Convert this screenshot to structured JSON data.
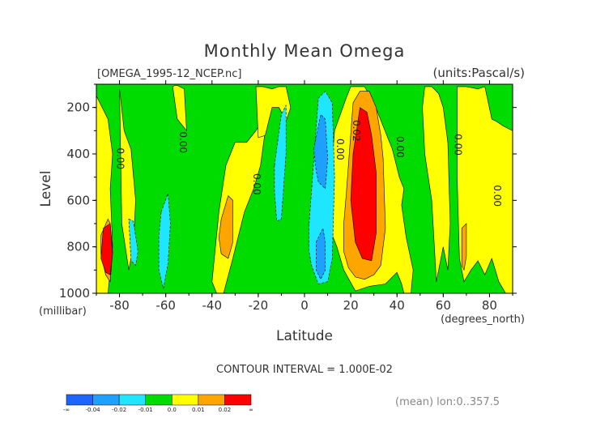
{
  "chart_data": {
    "type": "heatmap",
    "title": "Monthly Mean Omega",
    "file_label": "[OMEGA_1995-12_NCEP.nc]",
    "units_label": "(units:Pascal/s)",
    "xlabel": "Latitude",
    "x_units": "(degrees_north)",
    "ylabel": "Level",
    "y_units": "(millibar)",
    "xlim": [
      -90,
      90
    ],
    "ylim": [
      1000,
      100
    ],
    "x_ticks": [
      -80,
      -60,
      -40,
      -20,
      0,
      20,
      40,
      60,
      80
    ],
    "y_ticks": [
      200,
      400,
      600,
      800,
      1000
    ],
    "contour_interval_text": "CONTOUR INTERVAL = 1.000E-02",
    "mean_text": "(mean) lon:0..357.5",
    "background_level": 0.0,
    "regions": [
      {
        "value": 0.01,
        "lat": [
          -90,
          -90,
          -85,
          -83,
          -84,
          -83,
          -85,
          -90
        ],
        "lev": [
          150,
          1000,
          1000,
          800,
          550,
          400,
          250,
          150
        ]
      },
      {
        "value": 0.01,
        "lat": [
          -80,
          -78,
          -75,
          -73,
          -74,
          -76,
          -79
        ],
        "lev": [
          120,
          300,
          380,
          600,
          800,
          900,
          700
        ]
      },
      {
        "value": 0.01,
        "lat": [
          -57,
          -55,
          -51,
          -52,
          -55,
          -56
        ],
        "lev": [
          110,
          250,
          300,
          120,
          105,
          105
        ]
      },
      {
        "value": 0.01,
        "lat": [
          -39,
          -37,
          -34,
          -30,
          -25,
          -21,
          -18,
          -17,
          -19,
          -22,
          -26,
          -31,
          -35,
          -38,
          -40
        ],
        "lev": [
          850,
          650,
          450,
          350,
          350,
          300,
          250,
          300,
          450,
          550,
          650,
          850,
          1000,
          1000,
          950
        ]
      },
      {
        "value": 0.01,
        "lat": [
          -21,
          -18,
          -14,
          -11,
          -8,
          -6,
          -8,
          -11,
          -14,
          -17,
          -20
        ],
        "lev": [
          110,
          110,
          120,
          110,
          110,
          200,
          260,
          200,
          200,
          320,
          330
        ]
      },
      {
        "value": 0.01,
        "lat": [
          10,
          13,
          18,
          20,
          26,
          30,
          34,
          38,
          41,
          43,
          42,
          44,
          47,
          46,
          43,
          42,
          40,
          35,
          28,
          22,
          17,
          14,
          12,
          11
        ],
        "lev": [
          700,
          300,
          160,
          110,
          110,
          180,
          280,
          380,
          500,
          550,
          620,
          760,
          900,
          1000,
          1000,
          960,
          910,
          960,
          970,
          990,
          900,
          800,
          750,
          720
        ]
      },
      {
        "value": 0.01,
        "lat": [
          52,
          55,
          58,
          60,
          62,
          63,
          62,
          60,
          57,
          55,
          52,
          51
        ],
        "lev": [
          110,
          110,
          140,
          200,
          350,
          700,
          900,
          800,
          950,
          600,
          400,
          200
        ]
      },
      {
        "value": 0.01,
        "lat": [
          66,
          70,
          75,
          78,
          81,
          83,
          86,
          90,
          90,
          87,
          84,
          81,
          78,
          75,
          72,
          69,
          67,
          66
        ],
        "lev": [
          110,
          110,
          120,
          110,
          250,
          260,
          280,
          300,
          1000,
          1000,
          950,
          850,
          920,
          860,
          900,
          950,
          850,
          500
        ]
      },
      {
        "value": 0.02,
        "lat": [
          -88,
          -85,
          -84,
          -83,
          -84,
          -86,
          -88
        ],
        "lev": [
          750,
          680,
          700,
          820,
          950,
          920,
          830
        ]
      },
      {
        "value": 0.02,
        "lat": [
          -36,
          -33,
          -31,
          -31,
          -33,
          -36,
          -37
        ],
        "lev": [
          680,
          580,
          600,
          780,
          850,
          830,
          760
        ]
      },
      {
        "value": 0.02,
        "lat": [
          18,
          21,
          24,
          28,
          31,
          33,
          34,
          35,
          33,
          30,
          26,
          22,
          19,
          17,
          17
        ],
        "lev": [
          580,
          180,
          130,
          130,
          200,
          320,
          420,
          720,
          880,
          920,
          940,
          930,
          890,
          820,
          700
        ]
      },
      {
        "value": 0.02,
        "lat": [
          68,
          70,
          70,
          69,
          68
        ],
        "lev": [
          720,
          700,
          840,
          900,
          880
        ]
      },
      {
        "value": 0.03,
        "lat": [
          -87,
          -84,
          -83,
          -84,
          -86,
          -88
        ],
        "lev": [
          720,
          700,
          830,
          920,
          910,
          850
        ]
      },
      {
        "value": 0.03,
        "lat": [
          21,
          24,
          27,
          29,
          31,
          31,
          29,
          25,
          22,
          20
        ],
        "lev": [
          400,
          200,
          220,
          320,
          480,
          740,
          860,
          850,
          780,
          600
        ]
      },
      {
        "value": -0.01,
        "lat": [
          -76,
          -74,
          -72,
          -73,
          -75
        ],
        "lev": [
          680,
          690,
          820,
          880,
          860
        ]
      },
      {
        "value": -0.01,
        "lat": [
          -62,
          -59,
          -58,
          -59,
          -61,
          -63,
          -63
        ],
        "lev": [
          650,
          570,
          700,
          870,
          980,
          900,
          760
        ]
      },
      {
        "value": -0.01,
        "lat": [
          -13,
          -10,
          -8,
          -8,
          -10,
          -12,
          -13
        ],
        "lev": [
          450,
          230,
          190,
          400,
          680,
          690,
          560
        ]
      },
      {
        "value": -0.01,
        "lat": [
          2,
          6,
          9,
          12,
          13,
          12,
          10,
          6,
          3,
          2
        ],
        "lev": [
          700,
          160,
          130,
          180,
          500,
          850,
          950,
          960,
          880,
          820
        ]
      },
      {
        "value": -0.02,
        "lat": [
          4,
          7,
          9,
          10,
          9,
          6,
          5
        ],
        "lev": [
          380,
          230,
          250,
          420,
          550,
          520,
          470
        ]
      },
      {
        "value": -0.02,
        "lat": [
          5,
          8,
          9,
          9,
          7,
          5
        ],
        "lev": [
          780,
          720,
          780,
          900,
          940,
          900
        ]
      }
    ],
    "contour_labels": [
      {
        "text": "0.00",
        "lat": -81,
        "lev": 420
      },
      {
        "text": "0.00",
        "lat": -54,
        "lev": 350
      },
      {
        "text": "0.00",
        "lat": -22,
        "lev": 530
      },
      {
        "text": "0.00",
        "lat": 14,
        "lev": 380
      },
      {
        "text": "0.02",
        "lat": 21,
        "lev": 300
      },
      {
        "text": "0.00",
        "lat": 40,
        "lev": 370
      },
      {
        "text": "0.00",
        "lat": 65,
        "lev": 360
      },
      {
        "text": "0.00",
        "lat": 82,
        "lev": 580
      }
    ],
    "colorbar": {
      "colors": [
        "#1e64ff",
        "#1ea0ff",
        "#1ee6ff",
        "#00dc00",
        "#ffff00",
        "#ffa500",
        "#ff0000"
      ],
      "labels": [
        "-∞",
        "-0.04",
        "-0.02",
        "-0.01",
        "0.0",
        "0.01",
        "0.02",
        "∞"
      ]
    }
  }
}
